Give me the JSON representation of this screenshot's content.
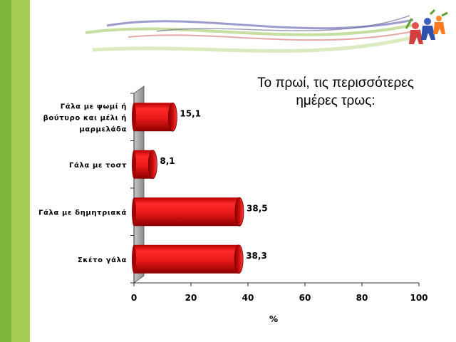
{
  "slide": {
    "colors": {
      "accent_green_dark": "#7fb53a",
      "accent_green_light": "#a4cc55",
      "bar_red": "#e81818",
      "bar_dark": "#8c0000"
    },
    "decoration": {
      "logo_icon": "children-holding-hands-icon"
    }
  },
  "chart_data": {
    "type": "bar",
    "orientation": "horizontal",
    "title": "Το πρωί, τις περισσότερες ημέρες τρως:",
    "title_lines": [
      "Το πρωί, τις περισσότερες",
      "ημέρες τρως:"
    ],
    "categories": [
      [
        "Γάλα με ψωμί ή",
        "βούτυρο και μέλι ή",
        "μαρμελάδα"
      ],
      [
        "Γάλα με τοστ"
      ],
      [
        "Γάλα με δημητριακά"
      ],
      [
        "Σκέτο γάλα"
      ]
    ],
    "values": [
      15.1,
      8.1,
      38.5,
      38.3
    ],
    "value_labels": [
      "15,1",
      "8,1",
      "38,5",
      "38,3"
    ],
    "xlabel": "%",
    "xlim": [
      0,
      100
    ],
    "xticks": [
      "0",
      "20",
      "40",
      "60",
      "80",
      "100"
    ],
    "grid": false,
    "legend": "none"
  }
}
